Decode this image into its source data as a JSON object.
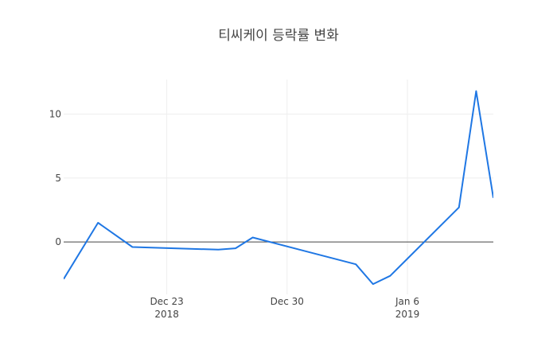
{
  "chart_data": {
    "type": "line",
    "title": "티씨케이 등락률 변화",
    "xlabel": "",
    "ylabel": "",
    "x": [
      "2018-12-17",
      "2018-12-19",
      "2018-12-21",
      "2018-12-26",
      "2018-12-27",
      "2018-12-28",
      "2019-01-03",
      "2019-01-04",
      "2019-01-05",
      "2019-01-09",
      "2019-01-10",
      "2019-01-11"
    ],
    "series": [
      {
        "values": [
          -2.9,
          1.5,
          -0.4,
          -0.6,
          -0.5,
          0.35,
          -1.75,
          -3.3,
          -2.65,
          2.7,
          11.8,
          3.45
        ]
      }
    ],
    "xlim": [
      "2018-12-17",
      "2019-01-11"
    ],
    "ylim": [
      -4.1,
      12.7
    ],
    "x_ticks": [
      {
        "date": "2018-12-23",
        "line1": "Dec 23",
        "line2": "2018"
      },
      {
        "date": "2018-12-30",
        "line1": "Dec 30",
        "line2": ""
      },
      {
        "date": "2019-01-06",
        "line1": "Jan 6",
        "line2": "2019"
      }
    ],
    "y_ticks": [
      0,
      5,
      10
    ],
    "grid": true,
    "line_color": "#1f77e4"
  }
}
